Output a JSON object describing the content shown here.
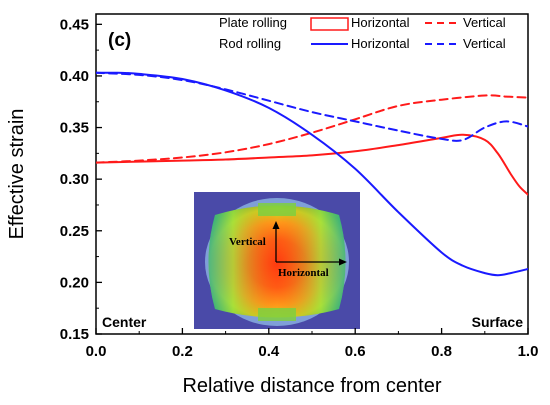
{
  "chart_data": {
    "type": "line",
    "panel_label": "(c)",
    "xlabel": "Relative distance from center",
    "ylabel": "Effective strain",
    "xlim": [
      0.0,
      1.0
    ],
    "ylim": [
      0.15,
      0.46
    ],
    "x_ticks": [
      "0.0",
      "0.2",
      "0.4",
      "0.6",
      "0.8",
      "1.0"
    ],
    "y_ticks": [
      "0.15",
      "0.20",
      "0.25",
      "0.30",
      "0.35",
      "0.40",
      "0.45"
    ],
    "legend": {
      "placement": "top-right",
      "group_plate": "Plate rolling",
      "group_rod": "Rod rolling",
      "horizontal_label": "Horizontal",
      "vertical_label": "Vertical"
    },
    "annotations": {
      "left": "Center",
      "right": "Surface"
    },
    "inset": {
      "vertical_label": "Vertical",
      "horizontal_label": "Horizontal"
    },
    "colors": {
      "plate": "#ff1a1a",
      "rod": "#1a1aff"
    },
    "series": [
      {
        "group": "plate",
        "direction": "horizontal",
        "style": "solid",
        "x": [
          0.0,
          0.1,
          0.2,
          0.3,
          0.4,
          0.5,
          0.6,
          0.7,
          0.8,
          0.85,
          0.9,
          0.93,
          0.96,
          0.98,
          1.0
        ],
        "y": [
          0.316,
          0.317,
          0.318,
          0.319,
          0.321,
          0.323,
          0.327,
          0.333,
          0.34,
          0.343,
          0.338,
          0.325,
          0.305,
          0.293,
          0.285
        ]
      },
      {
        "group": "plate",
        "direction": "vertical",
        "style": "dashed",
        "x": [
          0.0,
          0.1,
          0.2,
          0.3,
          0.4,
          0.5,
          0.6,
          0.7,
          0.8,
          0.9,
          0.95,
          1.0
        ],
        "y": [
          0.316,
          0.318,
          0.321,
          0.326,
          0.334,
          0.345,
          0.358,
          0.371,
          0.377,
          0.381,
          0.38,
          0.379
        ]
      },
      {
        "group": "rod",
        "direction": "horizontal",
        "style": "solid",
        "x": [
          0.0,
          0.05,
          0.1,
          0.2,
          0.3,
          0.4,
          0.5,
          0.6,
          0.7,
          0.8,
          0.85,
          0.9,
          0.93,
          0.96,
          1.0
        ],
        "y": [
          0.403,
          0.403,
          0.402,
          0.397,
          0.386,
          0.369,
          0.343,
          0.31,
          0.268,
          0.229,
          0.216,
          0.209,
          0.207,
          0.209,
          0.213
        ]
      },
      {
        "group": "rod",
        "direction": "vertical",
        "style": "dashed",
        "x": [
          0.0,
          0.1,
          0.2,
          0.3,
          0.4,
          0.5,
          0.6,
          0.7,
          0.8,
          0.85,
          0.9,
          0.95,
          1.0
        ],
        "y": [
          0.403,
          0.401,
          0.396,
          0.387,
          0.376,
          0.365,
          0.356,
          0.347,
          0.339,
          0.338,
          0.35,
          0.356,
          0.351
        ]
      }
    ]
  }
}
